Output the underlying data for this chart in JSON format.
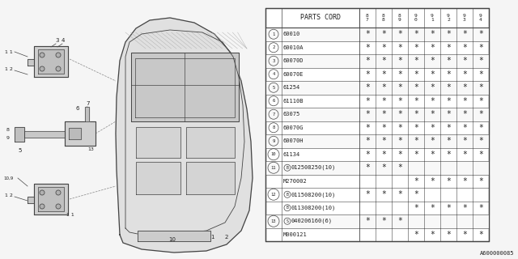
{
  "bg_color": "#f5f5f5",
  "col_header": "PARTS CORD",
  "year_cols": [
    "8\n7",
    "8\n8",
    "8\n9",
    "9\n0",
    "9\n1",
    "9\n2",
    "9\n3",
    "9\n4"
  ],
  "rows": [
    {
      "num": "1",
      "code": "60010",
      "stars": [
        1,
        1,
        1,
        1,
        1,
        1,
        1,
        1
      ],
      "badge": null
    },
    {
      "num": "2",
      "code": "60010A",
      "stars": [
        1,
        1,
        1,
        1,
        1,
        1,
        1,
        1
      ],
      "badge": null
    },
    {
      "num": "3",
      "code": "60070D",
      "stars": [
        1,
        1,
        1,
        1,
        1,
        1,
        1,
        1
      ],
      "badge": null
    },
    {
      "num": "4",
      "code": "60070E",
      "stars": [
        1,
        1,
        1,
        1,
        1,
        1,
        1,
        1
      ],
      "badge": null
    },
    {
      "num": "5",
      "code": "61254",
      "stars": [
        1,
        1,
        1,
        1,
        1,
        1,
        1,
        1
      ],
      "badge": null
    },
    {
      "num": "6",
      "code": "61110B",
      "stars": [
        1,
        1,
        1,
        1,
        1,
        1,
        1,
        1
      ],
      "badge": null
    },
    {
      "num": "7",
      "code": "63075",
      "stars": [
        1,
        1,
        1,
        1,
        1,
        1,
        1,
        1
      ],
      "badge": null
    },
    {
      "num": "8",
      "code": "60070G",
      "stars": [
        1,
        1,
        1,
        1,
        1,
        1,
        1,
        1
      ],
      "badge": null
    },
    {
      "num": "9",
      "code": "60070H",
      "stars": [
        1,
        1,
        1,
        1,
        1,
        1,
        1,
        1
      ],
      "badge": null
    },
    {
      "num": "10",
      "code": "61134",
      "stars": [
        1,
        1,
        1,
        1,
        1,
        1,
        1,
        1
      ],
      "badge": null
    },
    {
      "num": "11",
      "code": "012508250(10)",
      "stars": [
        1,
        1,
        1,
        0,
        0,
        0,
        0,
        0
      ],
      "badge": "B",
      "sub_code": "M270002",
      "sub_stars": [
        0,
        0,
        0,
        1,
        1,
        1,
        1,
        1
      ],
      "sub_badge": null
    },
    {
      "num": "12",
      "code": "011508200(10)",
      "stars": [
        1,
        1,
        1,
        1,
        0,
        0,
        0,
        0
      ],
      "badge": "B",
      "sub_code": "011308200(10)",
      "sub_stars": [
        0,
        0,
        0,
        1,
        1,
        1,
        1,
        1
      ],
      "sub_badge": "B"
    },
    {
      "num": "13",
      "code": "040206160(6)",
      "stars": [
        1,
        1,
        1,
        0,
        0,
        0,
        0,
        0
      ],
      "badge": "S",
      "sub_code": "M000121",
      "sub_stars": [
        0,
        0,
        0,
        1,
        1,
        1,
        1,
        1
      ],
      "sub_badge": null
    }
  ],
  "footer": "A600000085",
  "line_color": "#444444",
  "text_color": "#222222"
}
